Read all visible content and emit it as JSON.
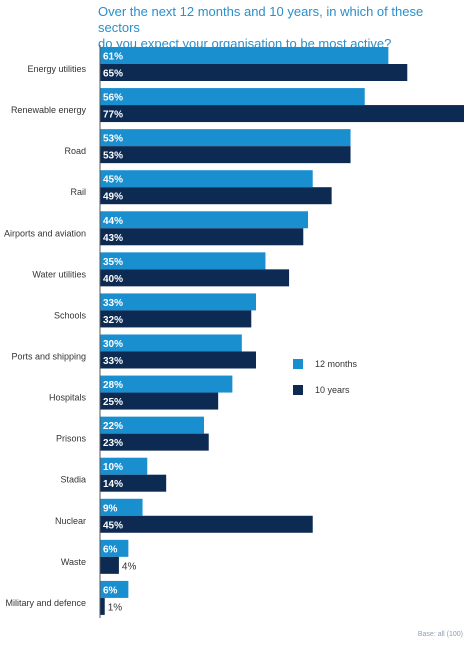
{
  "title_line1": "Over the next 12 months and 10 years, in which of these sectors",
  "title_line2": "do you expect your organisation to be most active?",
  "base_note": "Base: all (100)",
  "colors": {
    "s12m": "#1a8fd0",
    "s10y": "#0c2a52",
    "axis": "#555555"
  },
  "chart_data": {
    "type": "bar",
    "orientation": "horizontal",
    "title": "Over the next 12 months and 10 years, in which of these sectors do you expect your organisation to be most active?",
    "legend_position": "right",
    "categories": [
      "Energy utilities",
      "Renewable energy",
      "Road",
      "Rail",
      "Airports and aviation",
      "Water utilities",
      "Schools",
      "Ports and shipping",
      "Hospitals",
      "Prisons",
      "Stadia",
      "Nuclear",
      "Waste",
      "Military and defence"
    ],
    "series": [
      {
        "name": "12 months",
        "values": [
          61,
          56,
          53,
          45,
          44,
          35,
          33,
          30,
          28,
          22,
          10,
          9,
          6,
          6
        ]
      },
      {
        "name": "10 years",
        "values": [
          65,
          77,
          53,
          49,
          43,
          40,
          32,
          33,
          25,
          23,
          14,
          45,
          4,
          1
        ]
      }
    ],
    "value_suffix": "%",
    "xlim": [
      0,
      77
    ]
  }
}
